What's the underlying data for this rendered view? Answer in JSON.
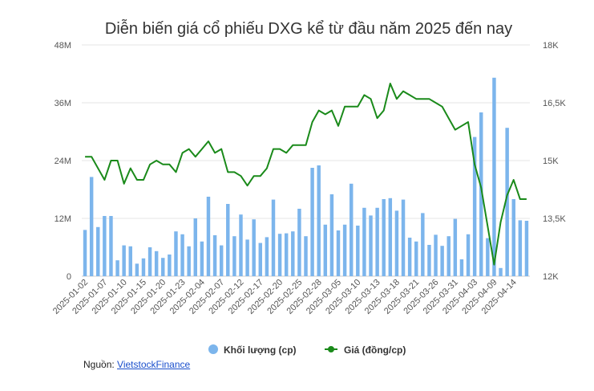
{
  "chart_data": {
    "type": "bar+line",
    "title": "Diễn biến giá cổ phiếu DXG kể từ đầu năm 2025 đến nay",
    "x_tick_labels": [
      "2025-01-02",
      "2025-01-07",
      "2025-01-10",
      "2025-01-15",
      "2025-01-20",
      "2025-01-23",
      "2025-02-04",
      "2025-02-07",
      "2025-02-12",
      "2025-02-17",
      "2025-02-20",
      "2025-02-25",
      "2025-02-28",
      "2025-03-05",
      "2025-03-10",
      "2025-03-13",
      "2025-03-18",
      "2025-03-21",
      "2025-03-26",
      "2025-03-31",
      "2025-04-03",
      "2025-04-09",
      "2025-04-14"
    ],
    "tick_every": 3,
    "left_axis": {
      "ticks": [
        "0",
        "12M",
        "24M",
        "36M",
        "48M"
      ],
      "min": 0,
      "max": 48000000
    },
    "right_axis": {
      "ticks": [
        "12K",
        "13,5K",
        "15K",
        "16,5K",
        "18K"
      ],
      "min": 12000,
      "max": 18000
    },
    "grid": true,
    "legend_position": "bottom",
    "colors": {
      "volume": "#7cb5ec",
      "price": "#1a8a1a"
    },
    "series": [
      {
        "name": "Khối lượng (cp)",
        "axis": "left",
        "type": "bar",
        "values": [
          9600000,
          20600000,
          10200000,
          12500000,
          12500000,
          3300000,
          6400000,
          6200000,
          2600000,
          3700000,
          6000000,
          5200000,
          3800000,
          4500000,
          9300000,
          8700000,
          6200000,
          12000000,
          7200000,
          16500000,
          8500000,
          6400000,
          15000000,
          8300000,
          12800000,
          7600000,
          11800000,
          6900000,
          8100000,
          15900000,
          8800000,
          8900000,
          9300000,
          14000000,
          8300000,
          22500000,
          23000000,
          10700000,
          17000000,
          9500000,
          10700000,
          19200000,
          10500000,
          14200000,
          12600000,
          14200000,
          16000000,
          16200000,
          13600000,
          15900000,
          8000000,
          7200000,
          13100000,
          6500000,
          8600000,
          6300000,
          8300000,
          11900000,
          3500000,
          8700000,
          28900000,
          34000000,
          7900000,
          41200000,
          1700000,
          30800000,
          16000000,
          11600000,
          11500000
        ]
      },
      {
        "name": "Giá (đồng/cp)",
        "axis": "right",
        "type": "line",
        "values": [
          15100,
          15100,
          14800,
          14500,
          15000,
          15000,
          14400,
          14800,
          14500,
          14500,
          14900,
          15000,
          14900,
          14900,
          14700,
          15200,
          15300,
          15100,
          15300,
          15500,
          15200,
          15300,
          14700,
          14700,
          14600,
          14350,
          14600,
          14600,
          14800,
          15300,
          15300,
          15200,
          15400,
          15400,
          15400,
          16000,
          16300,
          16200,
          16300,
          15900,
          16400,
          16400,
          16400,
          16700,
          16600,
          16100,
          16300,
          17000,
          16600,
          16800,
          16700,
          16600,
          16600,
          16600,
          16500,
          16400,
          16100,
          15800,
          15900,
          16000,
          14900,
          14300,
          13300,
          12300,
          13400,
          14100,
          14500,
          14000,
          14000
        ]
      }
    ]
  },
  "legend": {
    "volume_label": "Khối lượng (cp)",
    "price_label": "Giá (đồng/cp)"
  },
  "source": {
    "prefix": "Nguồn: ",
    "link_text": "VietstockFinance"
  }
}
